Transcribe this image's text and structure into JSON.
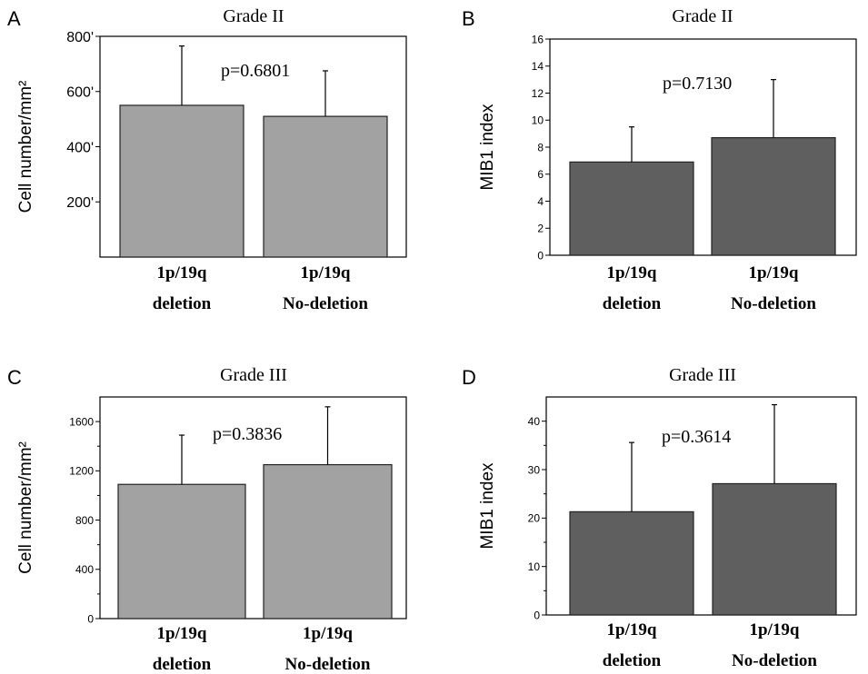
{
  "chart_data": [
    {
      "type": "bar",
      "panel": "A",
      "title": "Grade II",
      "ylabel": "Cell number/mm²",
      "categories": [
        [
          "1p/19q",
          "deletion"
        ],
        [
          "1p/19q",
          "No-deletion"
        ]
      ],
      "values": [
        550,
        510
      ],
      "errors": [
        215,
        165
      ],
      "ylim": [
        0,
        800
      ],
      "yticks": [
        "200",
        "400",
        "600",
        "800"
      ],
      "annotation": "p=0.6801",
      "bar_color": "#a2a2a2"
    },
    {
      "type": "bar",
      "panel": "B",
      "title": "Grade II",
      "ylabel": "MIB1 index",
      "categories": [
        [
          "1p/19q",
          "deletion"
        ],
        [
          "1p/19q",
          "No-deletion"
        ]
      ],
      "values": [
        6.9,
        8.7
      ],
      "errors": [
        2.6,
        4.3
      ],
      "ylim": [
        0,
        16
      ],
      "yticks": [
        "0",
        "2",
        "4",
        "6",
        "8",
        "10",
        "12",
        "14",
        "16"
      ],
      "annotation": "p=0.7130",
      "bar_color": "#5f5f5f"
    },
    {
      "type": "bar",
      "panel": "C",
      "title": "Grade III",
      "ylabel": "Cell number/mm²",
      "categories": [
        [
          "1p/19q",
          "deletion"
        ],
        [
          "1p/19q",
          "No-deletion"
        ]
      ],
      "values": [
        1090,
        1250
      ],
      "errors": [
        400,
        470
      ],
      "ylim": [
        0,
        1800
      ],
      "yticks": [
        "0",
        "400",
        "800",
        "1200",
        "1600"
      ],
      "annotation": "p=0.3836",
      "bar_color": "#a2a2a2"
    },
    {
      "type": "bar",
      "panel": "D",
      "title": "Grade III",
      "ylabel": "MIB1 index",
      "categories": [
        [
          "1p/19q",
          "deletion"
        ],
        [
          "1p/19q",
          "No-deletion"
        ]
      ],
      "values": [
        21.3,
        27.1
      ],
      "errors": [
        14.3,
        16.3
      ],
      "ylim": [
        0,
        45
      ],
      "yticks": [
        "0",
        "10",
        "20",
        "30",
        "40"
      ],
      "annotation": "p=0.3614",
      "bar_color": "#5f5f5f"
    }
  ]
}
